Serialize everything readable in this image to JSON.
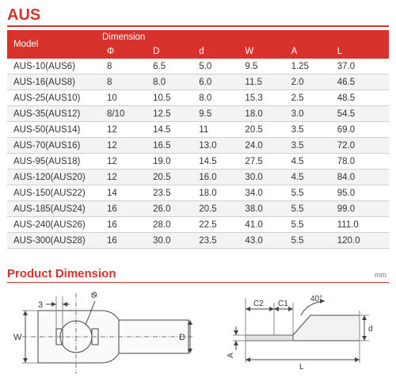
{
  "title": "AUS",
  "table": {
    "model_header": "Model",
    "dimension_header": "Dimension",
    "columns": [
      "Φ",
      "D",
      "d",
      "W",
      "A",
      "L"
    ],
    "rows": [
      [
        "AUS-10(AUS6)",
        "8",
        "6.5",
        "5.0",
        "9.5",
        "1.25",
        "37.0"
      ],
      [
        "AUS-16(AUS8)",
        "8",
        "8.0",
        "6.0",
        "11.5",
        "2.0",
        "46.5"
      ],
      [
        "AUS-25(AUS10)",
        "10",
        "10.5",
        "8.0",
        "15.3",
        "2.5",
        "48.5"
      ],
      [
        "AUS-35(AUS12)",
        "8/10",
        "12.5",
        "9.5",
        "18.0",
        "3.0",
        "54.5"
      ],
      [
        "AUS-50(AUS14)",
        "12",
        "14.5",
        "11",
        "20.5",
        "3.5",
        "69.0"
      ],
      [
        "AUS-70(AUS16)",
        "12",
        "16.5",
        "13.0",
        "24.0",
        "3.5",
        "72.0"
      ],
      [
        "AUS-95(AUS18)",
        "12",
        "19.0",
        "14.5",
        "27.5",
        "4.5",
        "78.0"
      ],
      [
        "AUS-120(AUS20)",
        "12",
        "20.5",
        "16.0",
        "30.0",
        "4.5",
        "84.0"
      ],
      [
        "AUS-150(AUS22)",
        "14",
        "23.5",
        "18.0",
        "34.0",
        "5.5",
        "95.0"
      ],
      [
        "AUS-185(AUS24)",
        "16",
        "26.0",
        "20.5",
        "38.0",
        "5.5",
        "99.0"
      ],
      [
        "AUS-240(AUS26)",
        "16",
        "28.0",
        "22.5",
        "41.0",
        "5.5",
        "111.0"
      ],
      [
        "AUS-300(AUS28)",
        "16",
        "30.0",
        "23.5",
        "43.0",
        "5.5",
        "120.0"
      ]
    ]
  },
  "product_dimension": {
    "heading": "Product Dimension",
    "unit": "mm",
    "top_view_labels": {
      "slot": "3",
      "phi": "Φ",
      "width": "W",
      "diameter": "D"
    },
    "side_view_labels": {
      "c2": "C2",
      "c1": "C1",
      "angle": "40°",
      "d": "d",
      "a": "A",
      "l": "L"
    }
  },
  "colors": {
    "accent": "#d9312b",
    "row_alt": "#f3f3f3"
  }
}
